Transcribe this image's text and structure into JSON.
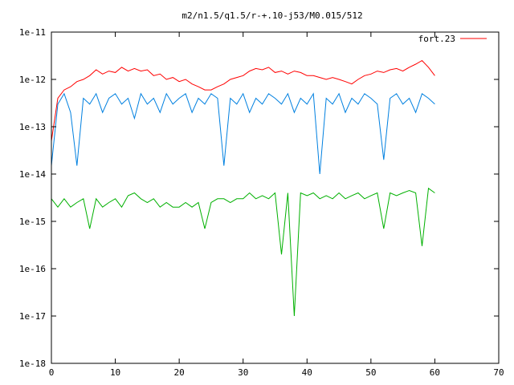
{
  "chart_data": {
    "type": "line",
    "title": "m2/n1.5/q1.5/r-+.10-j53/M0.015/512",
    "xlabel": "",
    "ylabel": "",
    "xlim": [
      0,
      70
    ],
    "ylim": [
      1e-18,
      1e-11
    ],
    "y_scale": "log",
    "grid": false,
    "legend_position": "top-right",
    "x_ticks": [
      0,
      10,
      20,
      30,
      40,
      50,
      60,
      70
    ],
    "x_tick_labels": [
      "0",
      "10",
      "20",
      "30",
      "40",
      "50",
      "60",
      "70"
    ],
    "y_ticks": [
      1e-18,
      1e-17,
      1e-16,
      1e-15,
      1e-14,
      1e-13,
      1e-12,
      1e-11
    ],
    "y_tick_labels": [
      "1e-18",
      "1e-17",
      "1e-16",
      "1e-15",
      "1e-14",
      "1e-13",
      "1e-12",
      "1e-11"
    ],
    "series": [
      {
        "name": "fort.23",
        "color": "#ff0000",
        "x": [
          0,
          1,
          2,
          3,
          4,
          5,
          6,
          7,
          8,
          9,
          10,
          11,
          12,
          13,
          14,
          15,
          16,
          17,
          18,
          19,
          20,
          21,
          22,
          23,
          24,
          25,
          26,
          27,
          28,
          29,
          30,
          31,
          32,
          33,
          34,
          35,
          36,
          37,
          38,
          39,
          40,
          41,
          42,
          43,
          44,
          45,
          46,
          47,
          48,
          49,
          50,
          51,
          52,
          53,
          54,
          55,
          56,
          57,
          58,
          59,
          60
        ],
        "y": [
          5e-14,
          4e-13,
          6e-13,
          7e-13,
          9e-13,
          1e-12,
          1.2e-12,
          1.6e-12,
          1.3e-12,
          1.5e-12,
          1.4e-12,
          1.8e-12,
          1.5e-12,
          1.7e-12,
          1.5e-12,
          1.6e-12,
          1.2e-12,
          1.3e-12,
          1e-12,
          1.1e-12,
          9e-13,
          1e-12,
          8e-13,
          7e-13,
          6e-13,
          6e-13,
          7e-13,
          8e-13,
          1e-12,
          1.1e-12,
          1.2e-12,
          1.5e-12,
          1.7e-12,
          1.6e-12,
          1.8e-12,
          1.4e-12,
          1.5e-12,
          1.3e-12,
          1.5e-12,
          1.4e-12,
          1.2e-12,
          1.2e-12,
          1.1e-12,
          1e-12,
          1.1e-12,
          1e-12,
          9e-13,
          8e-13,
          1e-12,
          1.2e-12,
          1.3e-12,
          1.5e-12,
          1.4e-12,
          1.6e-12,
          1.7e-12,
          1.5e-12,
          1.8e-12,
          2.1e-12,
          2.5e-12,
          1.8e-12,
          1.2e-12
        ]
      },
      {
        "name": "",
        "color": "#0080e0",
        "x": [
          0,
          1,
          2,
          3,
          4,
          5,
          6,
          7,
          8,
          9,
          10,
          11,
          12,
          13,
          14,
          15,
          16,
          17,
          18,
          19,
          20,
          21,
          22,
          23,
          24,
          25,
          26,
          27,
          28,
          29,
          30,
          31,
          32,
          33,
          34,
          35,
          36,
          37,
          38,
          39,
          40,
          41,
          42,
          43,
          44,
          45,
          46,
          47,
          48,
          49,
          50,
          51,
          52,
          53,
          54,
          55,
          56,
          57,
          58,
          59,
          60
        ],
        "y": [
          1.5e-14,
          3e-13,
          5e-13,
          2e-13,
          1.5e-14,
          4e-13,
          3e-13,
          5e-13,
          2e-13,
          4e-13,
          5e-13,
          3e-13,
          4e-13,
          1.5e-13,
          5e-13,
          3e-13,
          4e-13,
          2e-13,
          5e-13,
          3e-13,
          4e-13,
          5e-13,
          2e-13,
          4e-13,
          3e-13,
          5e-13,
          4e-13,
          1.5e-14,
          4e-13,
          3e-13,
          5e-13,
          2e-13,
          4e-13,
          3e-13,
          5e-13,
          4e-13,
          3e-13,
          5e-13,
          2e-13,
          4e-13,
          3e-13,
          5e-13,
          1e-14,
          4e-13,
          3e-13,
          5e-13,
          2e-13,
          4e-13,
          3e-13,
          5e-13,
          4e-13,
          3e-13,
          2e-14,
          4e-13,
          5e-13,
          3e-13,
          4e-13,
          2e-13,
          5e-13,
          4e-13,
          3e-13
        ]
      },
      {
        "name": "",
        "color": "#00b000",
        "x": [
          0,
          1,
          2,
          3,
          4,
          5,
          6,
          7,
          8,
          9,
          10,
          11,
          12,
          13,
          14,
          15,
          16,
          17,
          18,
          19,
          20,
          21,
          22,
          23,
          24,
          25,
          26,
          27,
          28,
          29,
          30,
          31,
          32,
          33,
          34,
          35,
          36,
          37,
          38,
          39,
          40,
          41,
          42,
          43,
          44,
          45,
          46,
          47,
          48,
          49,
          50,
          51,
          52,
          53,
          54,
          55,
          56,
          57,
          58,
          59,
          60
        ],
        "y": [
          3e-15,
          2e-15,
          3e-15,
          2e-15,
          2.5e-15,
          3e-15,
          7e-16,
          3e-15,
          2e-15,
          2.5e-15,
          3e-15,
          2e-15,
          3.5e-15,
          4e-15,
          3e-15,
          2.5e-15,
          3e-15,
          2e-15,
          2.5e-15,
          2e-15,
          2e-15,
          2.5e-15,
          2e-15,
          2.5e-15,
          7e-16,
          2.5e-15,
          3e-15,
          3e-15,
          2.5e-15,
          3e-15,
          3e-15,
          4e-15,
          3e-15,
          3.5e-15,
          3e-15,
          4e-15,
          2e-16,
          4e-15,
          1e-17,
          4e-15,
          3.5e-15,
          4e-15,
          3e-15,
          3.5e-15,
          3e-15,
          4e-15,
          3e-15,
          3.5e-15,
          4e-15,
          3e-15,
          3.5e-15,
          4e-15,
          7e-16,
          4e-15,
          3.5e-15,
          4e-15,
          4.5e-15,
          4e-15,
          3e-16,
          5e-15,
          4e-15
        ]
      }
    ]
  }
}
